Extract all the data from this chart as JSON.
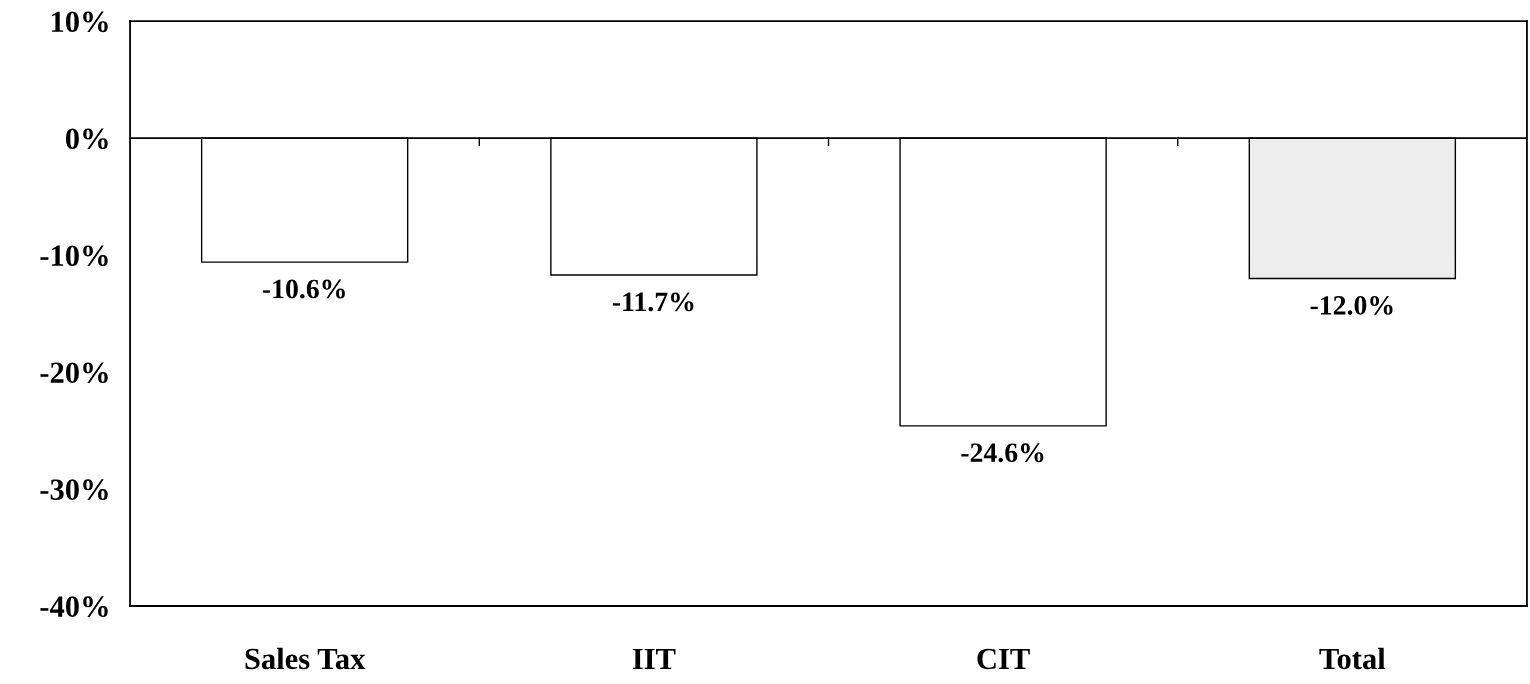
{
  "chart_data": {
    "type": "bar",
    "categories": [
      "Sales Tax",
      "IIT",
      "CIT",
      "Total"
    ],
    "values": [
      -10.6,
      -11.7,
      -24.6,
      -12.0
    ],
    "colors": [
      "#ffffff",
      "#ffffff",
      "#ffffff",
      "#ededed"
    ],
    "value_labels": [
      "-10.6%",
      "-11.7%",
      "-24.6%",
      "-12.0%"
    ],
    "ylim": [
      -40,
      10
    ],
    "yticks": [
      {
        "value": -40,
        "label": "-40%"
      },
      {
        "value": -30,
        "label": "-30%"
      },
      {
        "value": -20,
        "label": "-20%"
      },
      {
        "value": -10,
        "label": "-10%"
      },
      {
        "value": 0,
        "label": "0%"
      },
      {
        "value": 10,
        "label": "10%"
      }
    ],
    "ref_lines": [
      {
        "axis": "y",
        "value": 0,
        "color": "#000000"
      }
    ],
    "grid": false,
    "legend": false
  }
}
